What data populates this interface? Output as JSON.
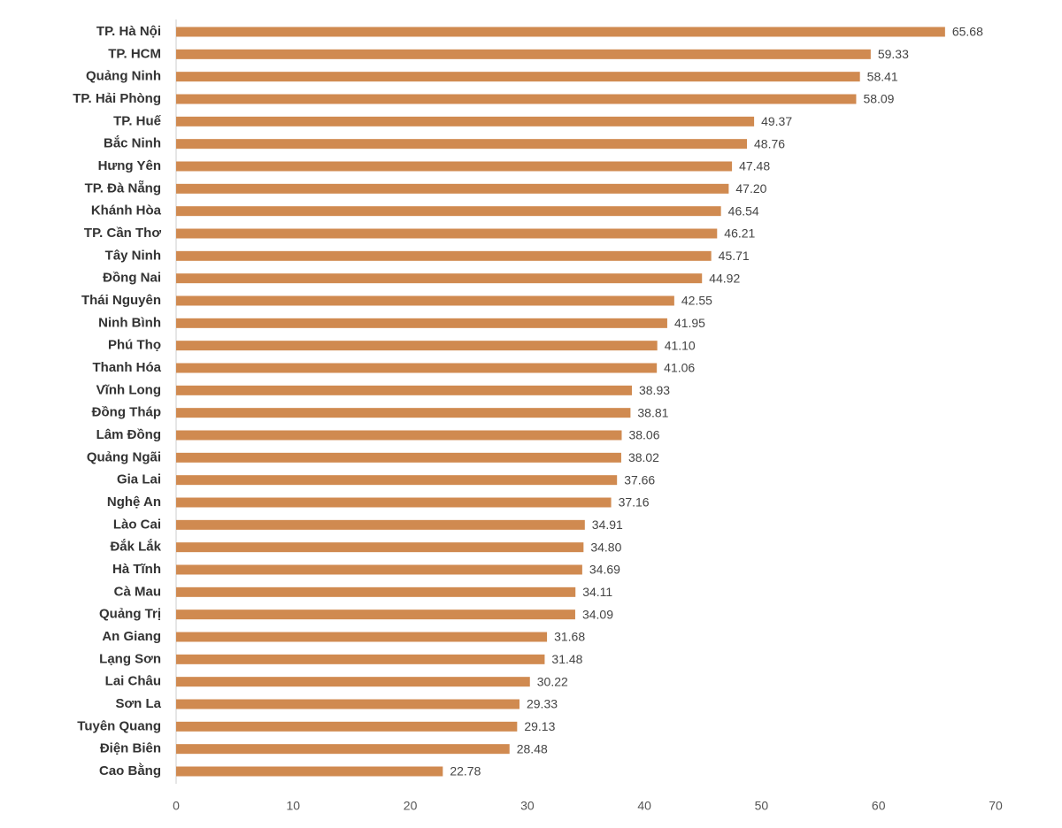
{
  "chart_data": {
    "type": "barh",
    "categories": [
      "TP. Hà Nội",
      "TP. HCM",
      "Quảng Ninh",
      "TP. Hải Phòng",
      "TP. Huế",
      "Bắc Ninh",
      "Hưng Yên",
      "TP. Đà Nẵng",
      "Khánh Hòa",
      "TP. Cần Thơ",
      "Tây Ninh",
      "Đồng Nai",
      "Thái Nguyên",
      "Ninh Bình",
      "Phú Thọ",
      "Thanh Hóa",
      "Vĩnh Long",
      "Đồng Tháp",
      "Lâm Đồng",
      "Quảng Ngãi",
      "Gia Lai",
      "Nghệ An",
      "Lào Cai",
      "Đắk Lắk",
      "Hà Tĩnh",
      "Cà Mau",
      "Quảng Trị",
      "An Giang",
      "Lạng Sơn",
      "Lai Châu",
      "Sơn La",
      "Tuyên Quang",
      "Điện Biên",
      "Cao Bằng"
    ],
    "values": [
      65.68,
      59.33,
      58.41,
      58.09,
      49.37,
      48.76,
      47.48,
      47.2,
      46.54,
      46.21,
      45.71,
      44.92,
      42.55,
      41.95,
      41.1,
      41.06,
      38.93,
      38.81,
      38.06,
      38.02,
      37.66,
      37.16,
      34.91,
      34.8,
      34.69,
      34.11,
      34.09,
      31.68,
      31.48,
      30.22,
      29.33,
      29.13,
      28.48,
      22.78
    ],
    "value_labels": [
      "65.68",
      "59.33",
      "58.41",
      "58.09",
      "49.37",
      "48.76",
      "47.48",
      "47.20",
      "46.54",
      "46.21",
      "45.71",
      "44.92",
      "42.55",
      "41.95",
      "41.10",
      "41.06",
      "38.93",
      "38.81",
      "38.06",
      "38.02",
      "37.66",
      "37.16",
      "34.91",
      "34.80",
      "34.69",
      "34.11",
      "34.09",
      "31.68",
      "31.48",
      "30.22",
      "29.33",
      "29.13",
      "28.48",
      "22.78"
    ],
    "color": "#d08a50",
    "xlim": [
      0,
      70
    ],
    "xticks": [
      0,
      10,
      20,
      30,
      40,
      50,
      60,
      70
    ],
    "grid": false
  }
}
